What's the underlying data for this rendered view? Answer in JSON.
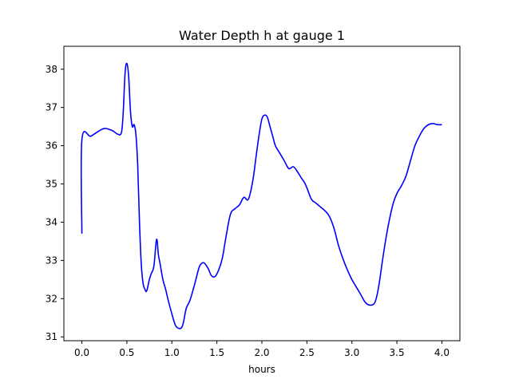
{
  "chart_data": {
    "type": "line",
    "title": "Water Depth h at gauge 1",
    "xlabel": "hours",
    "ylabel": "",
    "xlim": [
      -0.2,
      4.2
    ],
    "ylim": [
      30.9,
      38.6
    ],
    "xticks": [
      0.0,
      0.5,
      1.0,
      1.5,
      2.0,
      2.5,
      3.0,
      3.5,
      4.0
    ],
    "xtick_labels": [
      "0.0",
      "0.5",
      "1.0",
      "1.5",
      "2.0",
      "2.5",
      "3.0",
      "3.5",
      "4.0"
    ],
    "yticks": [
      31,
      32,
      33,
      34,
      35,
      36,
      37,
      38
    ],
    "ytick_labels": [
      "31",
      "32",
      "33",
      "34",
      "35",
      "36",
      "37",
      "38"
    ],
    "grid": false,
    "series": [
      {
        "color": "#0000ff",
        "x": [
          0.0,
          0.0,
          0.1,
          0.2,
          0.25,
          0.3,
          0.35,
          0.4,
          0.44,
          0.46,
          0.48,
          0.5,
          0.52,
          0.54,
          0.56,
          0.58,
          0.6,
          0.62,
          0.64,
          0.66,
          0.68,
          0.7,
          0.72,
          0.75,
          0.77,
          0.8,
          0.83,
          0.85,
          0.87,
          0.9,
          0.93,
          0.96,
          1.0,
          1.04,
          1.08,
          1.11,
          1.13,
          1.16,
          1.2,
          1.25,
          1.3,
          1.33,
          1.36,
          1.4,
          1.44,
          1.48,
          1.52,
          1.56,
          1.6,
          1.65,
          1.7,
          1.75,
          1.8,
          1.85,
          1.9,
          1.94,
          1.97,
          2.0,
          2.03,
          2.06,
          2.09,
          2.12,
          2.15,
          2.2,
          2.25,
          2.3,
          2.35,
          2.4,
          2.44,
          2.47,
          2.5,
          2.55,
          2.6,
          2.65,
          2.7,
          2.75,
          2.8,
          2.85,
          2.9,
          2.95,
          3.0,
          3.05,
          3.1,
          3.15,
          3.2,
          3.25,
          3.28,
          3.31,
          3.34,
          3.38,
          3.42,
          3.46,
          3.5,
          3.55,
          3.6,
          3.65,
          3.7,
          3.75,
          3.8,
          3.85,
          3.9,
          3.95,
          4.0
        ],
        "y": [
          33.7,
          36.15,
          36.25,
          36.4,
          36.45,
          36.43,
          36.38,
          36.3,
          36.35,
          36.9,
          37.9,
          38.15,
          37.8,
          36.9,
          36.5,
          36.55,
          36.3,
          35.5,
          34.0,
          32.9,
          32.4,
          32.25,
          32.2,
          32.5,
          32.65,
          32.85,
          33.55,
          33.15,
          32.9,
          32.5,
          32.25,
          31.95,
          31.6,
          31.3,
          31.22,
          31.25,
          31.4,
          31.75,
          31.95,
          32.35,
          32.8,
          32.92,
          32.93,
          32.8,
          32.6,
          32.58,
          32.75,
          33.05,
          33.6,
          34.2,
          34.35,
          34.45,
          34.65,
          34.6,
          35.1,
          35.8,
          36.3,
          36.7,
          36.8,
          36.75,
          36.5,
          36.25,
          36.0,
          35.8,
          35.6,
          35.4,
          35.45,
          35.3,
          35.15,
          35.05,
          34.9,
          34.6,
          34.5,
          34.4,
          34.3,
          34.15,
          33.85,
          33.4,
          33.05,
          32.75,
          32.5,
          32.3,
          32.1,
          31.9,
          31.83,
          31.88,
          32.1,
          32.5,
          33.0,
          33.6,
          34.1,
          34.5,
          34.75,
          34.95,
          35.2,
          35.6,
          36.0,
          36.25,
          36.45,
          36.55,
          36.58,
          36.55,
          36.55
        ]
      }
    ]
  }
}
